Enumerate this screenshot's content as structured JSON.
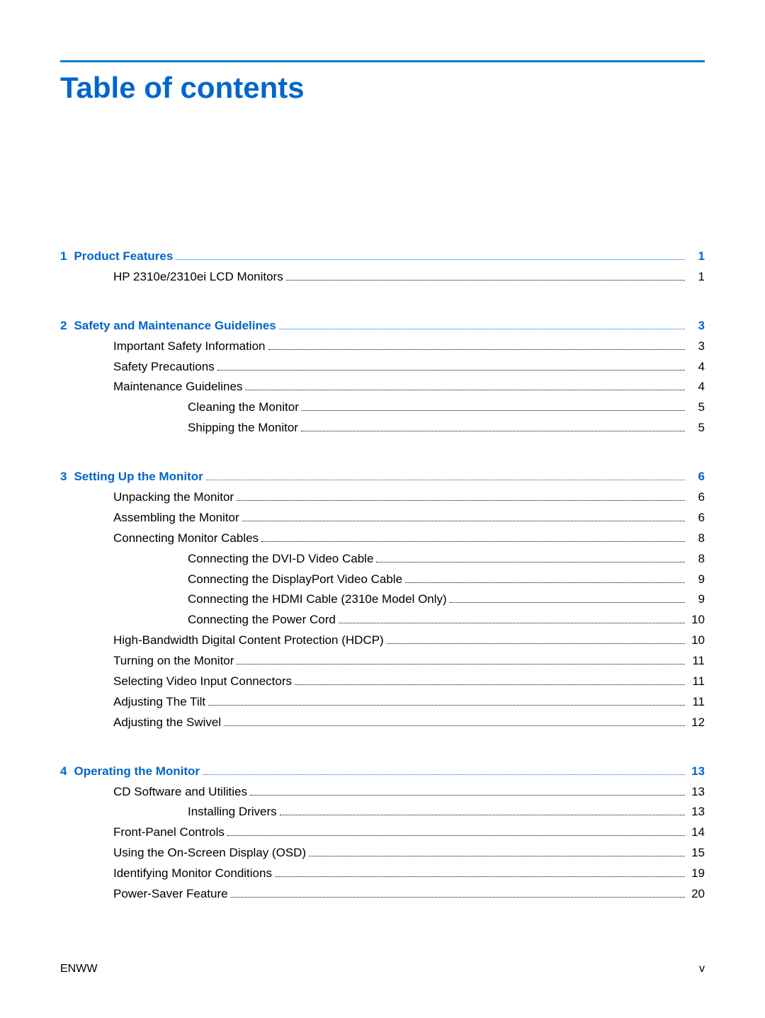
{
  "title": "Table of contents",
  "accent_color": "#0066cc",
  "chapters": [
    {
      "num": "1",
      "label": "Product Features",
      "page": "1",
      "items": [
        {
          "indent": 1,
          "label": "HP 2310e/2310ei LCD Monitors",
          "page": "1"
        }
      ]
    },
    {
      "num": "2",
      "label": "Safety and Maintenance Guidelines",
      "page": "3",
      "items": [
        {
          "indent": 1,
          "label": "Important Safety Information",
          "page": "3"
        },
        {
          "indent": 1,
          "label": "Safety Precautions",
          "page": "4"
        },
        {
          "indent": 1,
          "label": "Maintenance Guidelines",
          "page": "4"
        },
        {
          "indent": 2,
          "label": "Cleaning the Monitor",
          "page": "5"
        },
        {
          "indent": 2,
          "label": "Shipping the Monitor",
          "page": "5"
        }
      ]
    },
    {
      "num": "3",
      "label": "Setting Up the Monitor",
      "page": "6",
      "items": [
        {
          "indent": 1,
          "label": "Unpacking the Monitor",
          "page": "6"
        },
        {
          "indent": 1,
          "label": "Assembling the Monitor",
          "page": "6"
        },
        {
          "indent": 1,
          "label": "Connecting Monitor Cables",
          "page": "8"
        },
        {
          "indent": 2,
          "label": "Connecting the DVI-D Video Cable",
          "page": "8"
        },
        {
          "indent": 2,
          "label": "Connecting the DisplayPort Video Cable",
          "page": "9"
        },
        {
          "indent": 2,
          "label": "Connecting the HDMI Cable (2310e Model Only)",
          "page": "9"
        },
        {
          "indent": 2,
          "label": "Connecting the Power Cord",
          "page": "10"
        },
        {
          "indent": 1,
          "label": "High-Bandwidth Digital Content Protection (HDCP)",
          "page": "10"
        },
        {
          "indent": 1,
          "label": "Turning on the Monitor",
          "page": "11"
        },
        {
          "indent": 1,
          "label": "Selecting Video Input Connectors",
          "page": "11"
        },
        {
          "indent": 1,
          "label": "Adjusting The Tilt",
          "page": "11"
        },
        {
          "indent": 1,
          "label": "Adjusting the Swivel",
          "page": "12"
        }
      ]
    },
    {
      "num": "4",
      "label": "Operating the Monitor",
      "page": "13",
      "items": [
        {
          "indent": 1,
          "label": "CD Software and Utilities",
          "page": "13"
        },
        {
          "indent": 2,
          "label": "Installing Drivers",
          "page": "13"
        },
        {
          "indent": 1,
          "label": "Front-Panel Controls",
          "page": "14"
        },
        {
          "indent": 1,
          "label": "Using the On-Screen Display (OSD)",
          "page": "15"
        },
        {
          "indent": 1,
          "label": "Identifying Monitor Conditions",
          "page": "19"
        },
        {
          "indent": 1,
          "label": "Power-Saver Feature",
          "page": "20"
        }
      ]
    }
  ],
  "footer_left": "ENWW",
  "footer_right": "v"
}
